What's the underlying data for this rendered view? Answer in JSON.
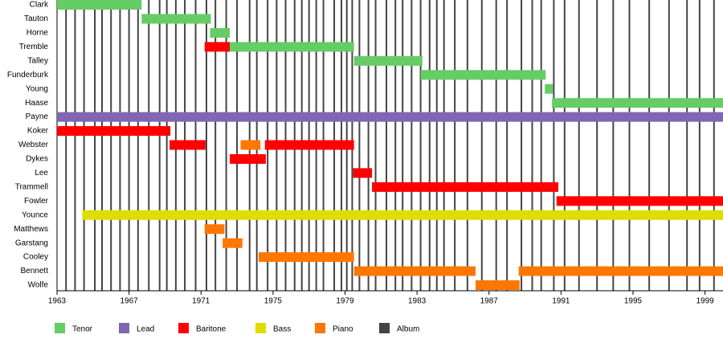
{
  "chart_data": {
    "type": "timeline",
    "xlim": [
      1963,
      2000
    ],
    "xticks": [
      1963,
      1967,
      1971,
      1975,
      1979,
      1983,
      1987,
      1991,
      1995,
      1999
    ],
    "series": [
      {
        "name": "Tenor",
        "color": "#66cc66"
      },
      {
        "name": "Lead",
        "color": "#8066b3"
      },
      {
        "name": "Baritone",
        "color": "#ff0000"
      },
      {
        "name": "Bass",
        "color": "#dddd00"
      },
      {
        "name": "Piano",
        "color": "#ff7700"
      },
      {
        "name": "Album",
        "color": "#444444",
        "values": [
          1963.5,
          1964.0,
          1964.5,
          1965.1,
          1965.5,
          1966.0,
          1966.5,
          1967.0,
          1967.5,
          1968.1,
          1968.7,
          1969.1,
          1969.6,
          1970.1,
          1970.7,
          1971.3,
          1971.8,
          1972.4,
          1973.0,
          1973.7,
          1974.1,
          1974.7,
          1975.2,
          1975.7,
          1976.2,
          1976.6,
          1977.0,
          1977.4,
          1977.8,
          1978.4,
          1978.8,
          1979.1,
          1979.4,
          1979.8,
          1980.3,
          1980.7,
          1981.3,
          1981.8,
          1982.2,
          1982.7,
          1983.2,
          1983.7,
          1984.1,
          1984.5,
          1985.1,
          1985.8,
          1986.6,
          1987.4,
          1988.0,
          1988.8,
          1989.4,
          1989.9,
          1990.6,
          1991.2,
          1992.0,
          1993.0,
          1993.9,
          1994.8,
          1995.9,
          1997.0,
          1998.0,
          1998.7,
          1999.5
        ]
      }
    ],
    "rows": [
      {
        "label": "Clark",
        "spans": [
          {
            "series": 0,
            "start": 1963,
            "end": 1967.7
          }
        ]
      },
      {
        "label": "Tauton",
        "spans": [
          {
            "series": 0,
            "start": 1967.7,
            "end": 1971.55
          }
        ]
      },
      {
        "label": "Horne",
        "spans": [
          {
            "series": 0,
            "start": 1971.5,
            "end": 1972.6
          }
        ]
      },
      {
        "label": "Tremble",
        "spans": [
          {
            "series": 2,
            "start": 1971.2,
            "end": 1972.6
          },
          {
            "series": 0,
            "start": 1972.6,
            "end": 1979.5
          }
        ]
      },
      {
        "label": "Talley",
        "spans": [
          {
            "series": 0,
            "start": 1979.5,
            "end": 1983.3
          }
        ]
      },
      {
        "label": "Funderburk",
        "spans": [
          {
            "series": 0,
            "start": 1983.2,
            "end": 1990.15
          }
        ]
      },
      {
        "label": "Young",
        "spans": [
          {
            "series": 0,
            "start": 1990.1,
            "end": 1990.55
          }
        ]
      },
      {
        "label": "Haase",
        "spans": [
          {
            "series": 0,
            "start": 1990.5,
            "end": 2000
          }
        ]
      },
      {
        "label": "Payne",
        "spans": [
          {
            "series": 1,
            "start": 1963,
            "end": 2000
          }
        ]
      },
      {
        "label": "Koker",
        "spans": [
          {
            "series": 2,
            "start": 1963,
            "end": 1969.3
          }
        ]
      },
      {
        "label": "Webster",
        "spans": [
          {
            "series": 2,
            "start": 1969.25,
            "end": 1971.25
          },
          {
            "series": 4,
            "start": 1973.2,
            "end": 1974.3
          },
          {
            "series": 2,
            "start": 1974.55,
            "end": 1979.5
          }
        ]
      },
      {
        "label": "Dykes",
        "spans": [
          {
            "series": 2,
            "start": 1972.6,
            "end": 1974.6
          }
        ]
      },
      {
        "label": "Lee",
        "spans": [
          {
            "series": 2,
            "start": 1979.45,
            "end": 1980.5
          }
        ]
      },
      {
        "label": "Trammell",
        "spans": [
          {
            "series": 2,
            "start": 1980.5,
            "end": 1990.85
          }
        ]
      },
      {
        "label": "Fowler",
        "spans": [
          {
            "series": 2,
            "start": 1990.75,
            "end": 2000
          }
        ]
      },
      {
        "label": "Younce",
        "spans": [
          {
            "series": 3,
            "start": 1964.4,
            "end": 2000
          }
        ]
      },
      {
        "label": "Matthews",
        "spans": [
          {
            "series": 4,
            "start": 1971.2,
            "end": 1972.3
          }
        ]
      },
      {
        "label": "Garstang",
        "spans": [
          {
            "series": 4,
            "start": 1972.2,
            "end": 1973.3
          }
        ]
      },
      {
        "label": "Cooley",
        "spans": [
          {
            "series": 4,
            "start": 1974.2,
            "end": 1979.5
          }
        ]
      },
      {
        "label": "Bennett",
        "spans": [
          {
            "series": 4,
            "start": 1979.5,
            "end": 1986.25
          },
          {
            "series": 4,
            "start": 1988.65,
            "end": 2000
          }
        ]
      },
      {
        "label": "Wolfe",
        "spans": [
          {
            "series": 4,
            "start": 1986.25,
            "end": 1988.7
          }
        ]
      }
    ]
  }
}
